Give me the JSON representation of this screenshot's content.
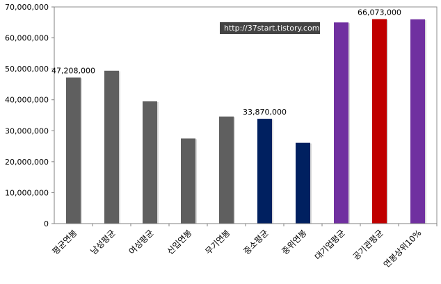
{
  "chart_data": {
    "type": "bar",
    "title": "",
    "xlabel": "",
    "ylabel": "",
    "ylim": [
      0,
      70000000
    ],
    "yticks": [
      0,
      10000000,
      20000000,
      30000000,
      40000000,
      50000000,
      60000000,
      70000000
    ],
    "ytick_labels": [
      "0",
      "10,000,000",
      "20,000,000",
      "30,000,000",
      "40,000,000",
      "50,000,000",
      "60,000,000",
      "70,000,000"
    ],
    "grid": false,
    "legend": "none",
    "categories": [
      "평균연봉",
      "남성평균",
      "여성평균",
      "신입연봉",
      "무기연봉",
      "중소평균",
      "중위연봉",
      "대기업평균",
      "공기관평균",
      "연봉상위10%"
    ],
    "values": [
      47208000,
      49400000,
      39500000,
      27500000,
      34600000,
      33870000,
      26100000,
      65000000,
      66073000,
      66000000
    ],
    "colors": [
      "#5f5f5f",
      "#5f5f5f",
      "#5f5f5f",
      "#5f5f5f",
      "#5f5f5f",
      "#002060",
      "#002060",
      "#7030a0",
      "#c00000",
      "#7030a0"
    ],
    "data_labels": [
      {
        "index": 0,
        "text": "47,208,000"
      },
      {
        "index": 5,
        "text": "33,870,000"
      },
      {
        "index": 8,
        "text": "66,073,000"
      }
    ]
  },
  "watermark": {
    "text": "http://37start.tistory.com"
  }
}
